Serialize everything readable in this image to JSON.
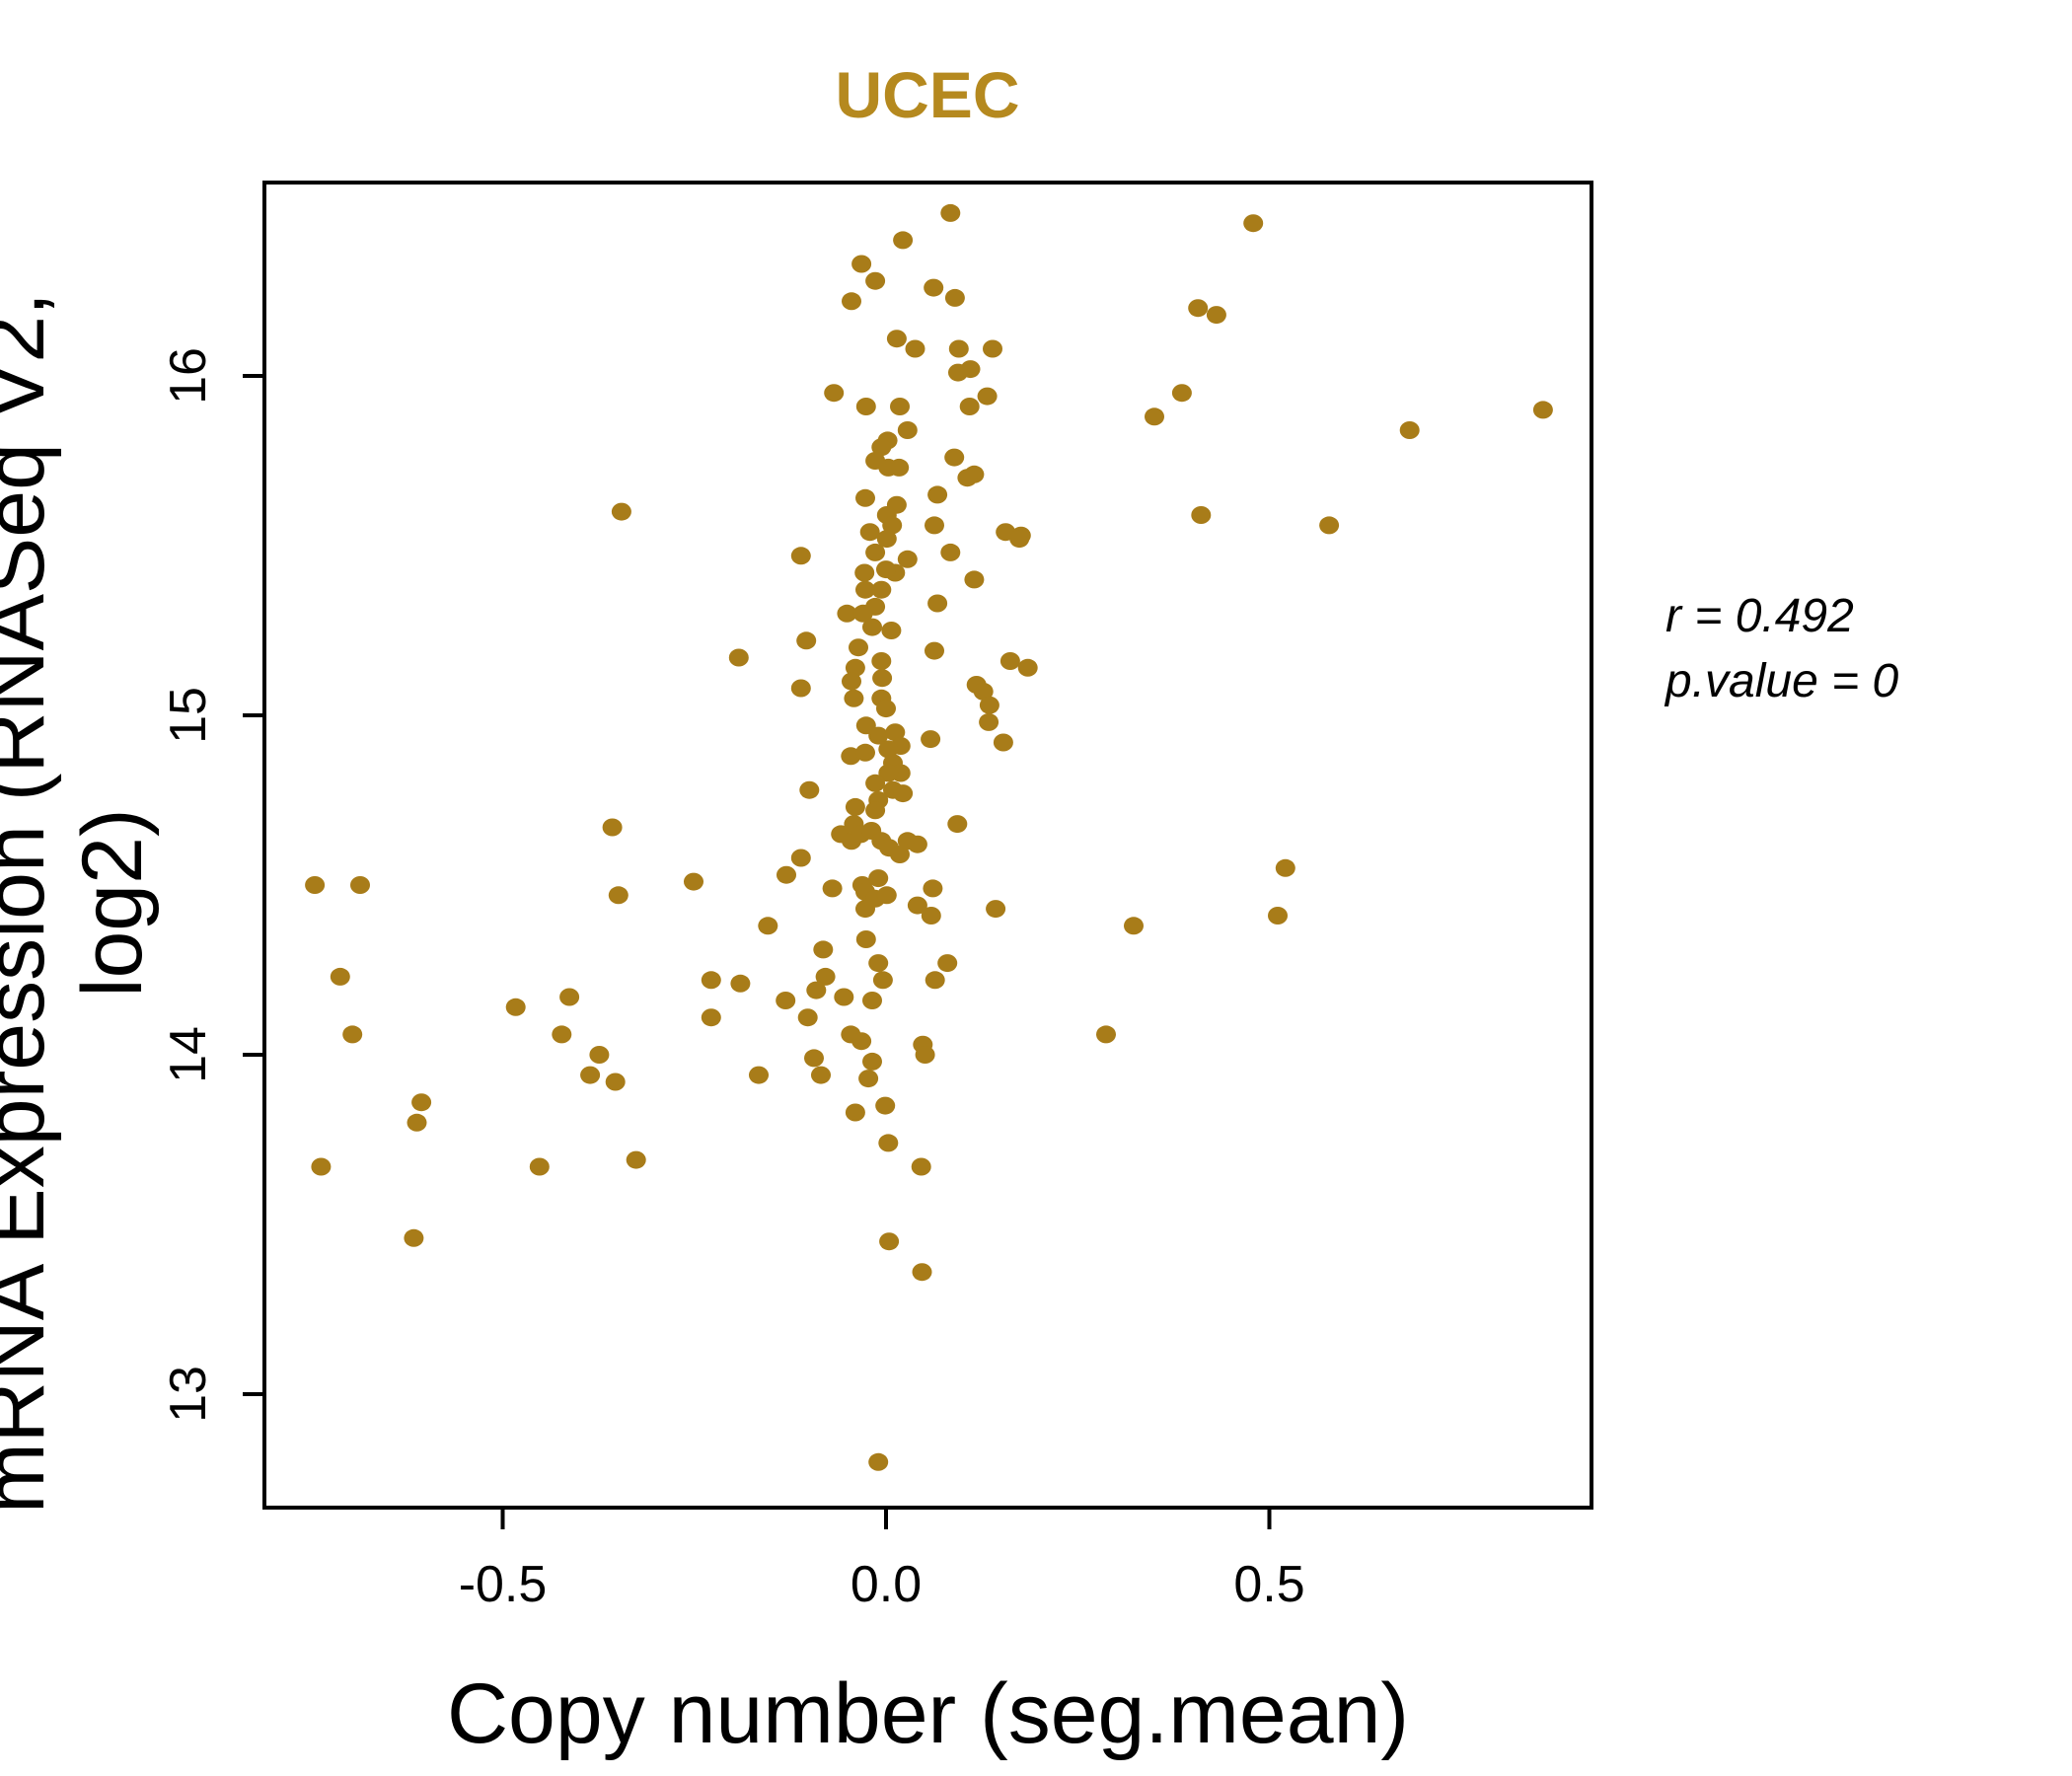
{
  "title": "UCEC",
  "annotation": {
    "line1": "r = 0.492",
    "line2": "p.value = 0"
  },
  "colors": {
    "point": "#A87C19",
    "title": "#B5891F",
    "axis": "#000000"
  },
  "chart_data": {
    "type": "scatter",
    "title": "UCEC",
    "xlabel": "Copy number (seg.mean)",
    "ylabel": "mRNA Expression (RNASeq V2, log2)",
    "x_ticks": [
      -0.5,
      0.0,
      0.5
    ],
    "x_tick_labels": [
      "-0.5",
      "0.0",
      "0.5"
    ],
    "y_ticks": [
      13,
      14,
      15,
      16
    ],
    "y_tick_labels": [
      "13",
      "14",
      "15",
      "16"
    ],
    "xlim": [
      -0.81,
      0.92
    ],
    "ylim": [
      12.67,
      16.57
    ],
    "grid": false,
    "legend": "none",
    "stats": {
      "r": 0.492,
      "p_value": 0
    },
    "points": [
      [
        0.084,
        16.48
      ],
      [
        0.022,
        16.4
      ],
      [
        -0.032,
        16.33
      ],
      [
        -0.014,
        16.28
      ],
      [
        0.062,
        16.26
      ],
      [
        0.09,
        16.23
      ],
      [
        -0.045,
        16.22
      ],
      [
        0.014,
        16.11
      ],
      [
        0.038,
        16.08
      ],
      [
        0.095,
        16.08
      ],
      [
        0.139,
        16.08
      ],
      [
        0.094,
        16.01
      ],
      [
        0.11,
        16.02
      ],
      [
        -0.068,
        15.95
      ],
      [
        -0.026,
        15.91
      ],
      [
        0.018,
        15.91
      ],
      [
        0.109,
        15.91
      ],
      [
        0.132,
        15.94
      ],
      [
        0.35,
        15.88
      ],
      [
        0.028,
        15.84
      ],
      [
        0.002,
        15.81
      ],
      [
        -0.006,
        15.79
      ],
      [
        -0.014,
        15.75
      ],
      [
        0.003,
        15.73
      ],
      [
        0.017,
        15.73
      ],
      [
        0.089,
        15.76
      ],
      [
        0.115,
        15.71
      ],
      [
        0.106,
        15.7
      ],
      [
        0.067,
        15.65
      ],
      [
        0.063,
        15.56
      ],
      [
        -0.027,
        15.64
      ],
      [
        0.014,
        15.62
      ],
      [
        0.001,
        15.59
      ],
      [
        0.008,
        15.56
      ],
      [
        -0.021,
        15.54
      ],
      [
        0.001,
        15.52
      ],
      [
        0.156,
        15.54
      ],
      [
        0.176,
        15.53
      ],
      [
        -0.111,
        15.47
      ],
      [
        -0.345,
        15.6
      ],
      [
        0.479,
        16.45
      ],
      [
        0.407,
        16.2
      ],
      [
        0.431,
        16.18
      ],
      [
        0.857,
        15.9
      ],
      [
        0.386,
        15.95
      ],
      [
        0.683,
        15.84
      ],
      [
        0.411,
        15.59
      ],
      [
        0.578,
        15.56
      ],
      [
        0.174,
        15.52
      ],
      [
        -0.014,
        15.48
      ],
      [
        0.084,
        15.48
      ],
      [
        0.028,
        15.46
      ],
      [
        -0.028,
        15.42
      ],
      [
        0.012,
        15.42
      ],
      [
        0.0,
        15.43
      ],
      [
        -0.006,
        15.37
      ],
      [
        0.115,
        15.4
      ],
      [
        -0.027,
        15.37
      ],
      [
        -0.051,
        15.3
      ],
      [
        -0.014,
        15.32
      ],
      [
        -0.03,
        15.3
      ],
      [
        -0.018,
        15.26
      ],
      [
        0.007,
        15.25
      ],
      [
        -0.036,
        15.2
      ],
      [
        0.063,
        15.19
      ],
      [
        -0.006,
        15.16
      ],
      [
        -0.04,
        15.14
      ],
      [
        -0.005,
        15.11
      ],
      [
        -0.042,
        15.05
      ],
      [
        -0.006,
        15.05
      ],
      [
        0.0,
        15.02
      ],
      [
        -0.045,
        15.1
      ],
      [
        -0.111,
        15.08
      ],
      [
        -0.104,
        15.22
      ],
      [
        -0.192,
        15.17
      ],
      [
        0.162,
        15.16
      ],
      [
        0.185,
        15.14
      ],
      [
        0.118,
        15.09
      ],
      [
        0.127,
        15.07
      ],
      [
        0.135,
        15.03
      ],
      [
        0.134,
        14.98
      ],
      [
        0.153,
        14.92
      ],
      [
        0.067,
        15.33
      ],
      [
        0.058,
        14.93
      ],
      [
        -0.026,
        14.97
      ],
      [
        -0.01,
        14.94
      ],
      [
        0.012,
        14.95
      ],
      [
        0.019,
        14.91
      ],
      [
        0.003,
        14.9
      ],
      [
        -0.046,
        14.88
      ],
      [
        -0.027,
        14.89
      ],
      [
        0.009,
        14.86
      ],
      [
        0.019,
        14.83
      ],
      [
        0.003,
        14.83
      ],
      [
        -0.014,
        14.8
      ],
      [
        0.009,
        14.78
      ],
      [
        0.022,
        14.77
      ],
      [
        -0.01,
        14.75
      ],
      [
        -0.1,
        14.78
      ],
      [
        -0.04,
        14.73
      ],
      [
        -0.014,
        14.72
      ],
      [
        0.093,
        14.68
      ],
      [
        -0.042,
        14.68
      ],
      [
        -0.059,
        14.65
      ],
      [
        -0.045,
        14.63
      ],
      [
        -0.033,
        14.65
      ],
      [
        -0.019,
        14.66
      ],
      [
        -0.006,
        14.63
      ],
      [
        0.004,
        14.61
      ],
      [
        0.018,
        14.59
      ],
      [
        0.028,
        14.63
      ],
      [
        0.041,
        14.62
      ],
      [
        -0.111,
        14.58
      ],
      [
        -0.13,
        14.53
      ],
      [
        -0.07,
        14.49
      ],
      [
        -0.031,
        14.5
      ],
      [
        -0.01,
        14.52
      ],
      [
        -0.027,
        14.48
      ],
      [
        -0.014,
        14.46
      ],
      [
        0.001,
        14.47
      ],
      [
        -0.027,
        14.43
      ],
      [
        0.061,
        14.49
      ],
      [
        0.041,
        14.44
      ],
      [
        0.059,
        14.41
      ],
      [
        0.143,
        14.43
      ],
      [
        0.323,
        14.38
      ],
      [
        -0.154,
        14.38
      ],
      [
        -0.026,
        14.34
      ],
      [
        -0.082,
        14.31
      ],
      [
        -0.357,
        14.67
      ],
      [
        -0.745,
        14.5
      ],
      [
        -0.686,
        14.5
      ],
      [
        -0.349,
        14.47
      ],
      [
        -0.251,
        14.51
      ],
      [
        -0.712,
        14.23
      ],
      [
        -0.483,
        14.14
      ],
      [
        -0.413,
        14.17
      ],
      [
        -0.696,
        14.06
      ],
      [
        -0.423,
        14.06
      ],
      [
        -0.374,
        14.0
      ],
      [
        -0.386,
        13.94
      ],
      [
        -0.353,
        13.92
      ],
      [
        -0.606,
        13.86
      ],
      [
        -0.612,
        13.8
      ],
      [
        -0.737,
        13.67
      ],
      [
        -0.452,
        13.67
      ],
      [
        -0.326,
        13.69
      ],
      [
        -0.616,
        13.46
      ],
      [
        0.521,
        14.55
      ],
      [
        0.511,
        14.41
      ],
      [
        0.287,
        14.06
      ],
      [
        -0.01,
        14.27
      ],
      [
        -0.004,
        14.22
      ],
      [
        0.08,
        14.27
      ],
      [
        0.064,
        14.22
      ],
      [
        -0.079,
        14.23
      ],
      [
        -0.228,
        14.22
      ],
      [
        -0.19,
        14.21
      ],
      [
        -0.091,
        14.19
      ],
      [
        -0.131,
        14.16
      ],
      [
        -0.055,
        14.17
      ],
      [
        -0.018,
        14.16
      ],
      [
        -0.228,
        14.11
      ],
      [
        -0.102,
        14.11
      ],
      [
        -0.046,
        14.06
      ],
      [
        -0.032,
        14.04
      ],
      [
        0.048,
        14.03
      ],
      [
        0.051,
        14.0
      ],
      [
        -0.094,
        13.99
      ],
      [
        -0.018,
        13.98
      ],
      [
        -0.166,
        13.94
      ],
      [
        -0.085,
        13.94
      ],
      [
        -0.023,
        13.93
      ],
      [
        -0.001,
        13.85
      ],
      [
        -0.04,
        13.83
      ],
      [
        0.003,
        13.74
      ],
      [
        0.046,
        13.67
      ],
      [
        0.004,
        13.45
      ],
      [
        0.047,
        13.36
      ],
      [
        -0.01,
        12.8
      ]
    ]
  }
}
